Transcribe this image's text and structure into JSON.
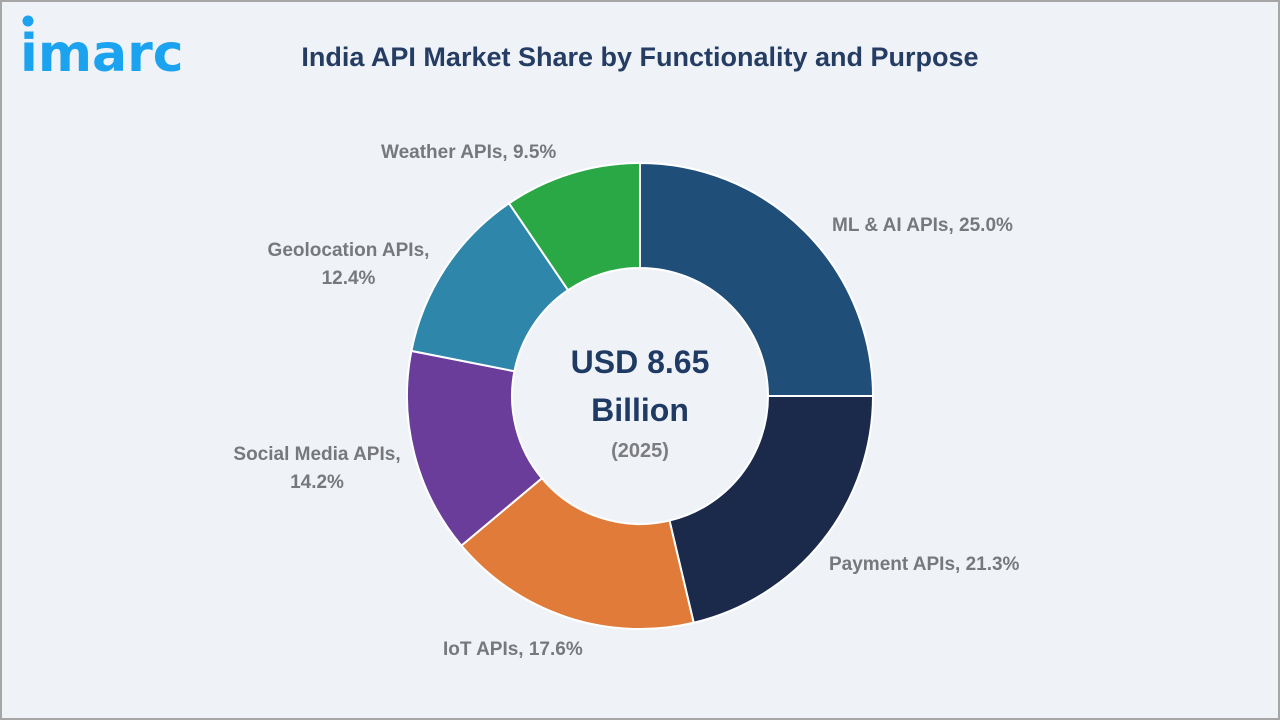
{
  "brand": {
    "logo_text": "imarc",
    "logo_color": "#1ba3f0"
  },
  "header": {
    "title": "India API Market Share by Functionality and Purpose"
  },
  "center": {
    "value_line1": "USD 8.65",
    "value_line2": "Billion",
    "year": "(2025)"
  },
  "labels": {
    "ml": "ML & AI APIs, 25.0%",
    "payment": "Payment APIs, 21.3%",
    "iot": "IoT APIs, 17.6%",
    "social_line1": "Social Media APIs,",
    "social_line2": "14.2%",
    "geo_line1": "Geolocation APIs,",
    "geo_line2": "12.4%",
    "weather": "Weather APIs, 9.5%"
  },
  "chart_data": {
    "type": "pie",
    "variant": "donut",
    "title": "India API Market Share by Functionality and Purpose",
    "center_label": "USD 8.65 Billion (2025)",
    "unit": "%",
    "categories": [
      "ML & AI APIs",
      "Payment APIs",
      "IoT APIs",
      "Social Media APIs",
      "Geolocation APIs",
      "Weather APIs"
    ],
    "values": [
      25.0,
      21.3,
      17.6,
      14.2,
      12.4,
      9.5
    ],
    "colors": [
      "#1f4e79",
      "#1b2a4b",
      "#e07b39",
      "#6a3d9a",
      "#2e86ab",
      "#2aa845"
    ],
    "start_angle_deg": 0,
    "direction": "clockwise",
    "legend": "none (data labels beside slices)"
  }
}
